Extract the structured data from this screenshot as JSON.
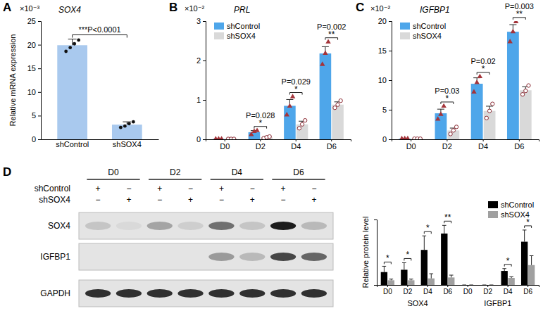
{
  "chart_data": [
    {
      "panel": "A",
      "type": "bar",
      "title": "SOX4",
      "y_unit_label": "×10⁻³",
      "y_label": "Relative mRNA expression",
      "categories": [
        "shControl",
        "shSOX4"
      ],
      "values": [
        19.9,
        3.1
      ],
      "errors": [
        1.3,
        0.6
      ],
      "points": [
        [
          18.6,
          19.4,
          20.2,
          21.0
        ],
        [
          2.5,
          2.8,
          3.3,
          3.7
        ]
      ],
      "marker": "dot",
      "color": "#a9c9ee",
      "ylim": [
        0,
        25
      ],
      "yticks": [
        0,
        5,
        10,
        15,
        20,
        25
      ],
      "annotations": [
        {
          "text": "***P<0.0001",
          "from": 0,
          "to": 1
        }
      ]
    },
    {
      "panel": "B",
      "type": "bar",
      "title": "PRL",
      "y_unit_label": "×10⁻²",
      "categories": [
        "D0",
        "D2",
        "D4",
        "D6"
      ],
      "series": [
        {
          "name": "shControl",
          "color": "#4ea6ea",
          "marker": "triangle",
          "values": [
            0.01,
            0.18,
            0.85,
            2.18
          ],
          "errors": [
            0.005,
            0.04,
            0.16,
            0.17
          ],
          "points": [
            [
              0.01,
              0.01,
              0.01
            ],
            [
              0.12,
              0.2,
              0.22
            ],
            [
              0.62,
              0.84,
              1.08
            ],
            [
              1.9,
              2.18,
              2.47
            ]
          ]
        },
        {
          "name": "shSOX4",
          "color": "#d9d9d9",
          "marker": "circle",
          "values": [
            0.01,
            0.05,
            0.38,
            0.88
          ],
          "errors": [
            0.005,
            0.02,
            0.08,
            0.07
          ],
          "points": [
            [
              0.01,
              0.01,
              0.01
            ],
            [
              0.03,
              0.05,
              0.07
            ],
            [
              0.28,
              0.38,
              0.48
            ],
            [
              0.8,
              0.88,
              0.98
            ]
          ]
        }
      ],
      "ylim": [
        0,
        3
      ],
      "yticks": [
        0,
        1,
        2,
        3
      ],
      "legend": "top-left",
      "significance": [
        {
          "category": 1,
          "p": "P=0.028",
          "stars": "*"
        },
        {
          "category": 2,
          "p": "P=0.029",
          "stars": "*"
        },
        {
          "category": 3,
          "p": "P=0.002",
          "stars": "**"
        }
      ]
    },
    {
      "panel": "C",
      "type": "bar",
      "title": "IGFBP1",
      "y_unit_label": "×10⁻²",
      "categories": [
        "D0",
        "D2",
        "D4",
        "D6"
      ],
      "series": [
        {
          "name": "shControl",
          "color": "#4ea6ea",
          "marker": "triangle",
          "values": [
            0.1,
            4.4,
            9.4,
            18.2
          ],
          "errors": [
            0.05,
            0.7,
            1.0,
            1.2
          ],
          "points": [
            [
              0.1,
              0.1,
              0.1
            ],
            [
              3.4,
              4.2,
              5.6
            ],
            [
              8.0,
              9.6,
              10.6
            ],
            [
              16.5,
              18.2,
              19.9
            ]
          ]
        },
        {
          "name": "shSOX4",
          "color": "#d9d9d9",
          "marker": "circle",
          "values": [
            0.1,
            1.5,
            4.8,
            8.3
          ],
          "errors": [
            0.05,
            0.4,
            0.8,
            0.6
          ],
          "points": [
            [
              0.1,
              0.1,
              0.1
            ],
            [
              0.9,
              1.5,
              2.1
            ],
            [
              3.6,
              4.8,
              6.0
            ],
            [
              7.6,
              8.2,
              9.1
            ]
          ]
        }
      ],
      "ylim": [
        0,
        20
      ],
      "yticks": [
        0,
        5,
        10,
        15,
        20
      ],
      "legend": "top-left",
      "significance": [
        {
          "category": 1,
          "p": "P=0.03",
          "stars": "*"
        },
        {
          "category": 2,
          "p": "P=0.02",
          "stars": "*"
        },
        {
          "category": 3,
          "p": "P=0.003",
          "stars": "**"
        }
      ]
    },
    {
      "type": "bar",
      "y_label": "Relative protein level",
      "categories": [
        "D0",
        "D2",
        "D4",
        "D6",
        "D0",
        "D2",
        "D4",
        "D6"
      ],
      "group_labels": [
        "SOX4",
        "IGFBP1"
      ],
      "series": [
        {
          "name": "shControl",
          "color": "#000000",
          "values": [
            0.55,
            0.65,
            1.5,
            2.2,
            0,
            0,
            0.6,
            1.85
          ],
          "errors": [
            0.25,
            0.3,
            0.6,
            0.35,
            0,
            0,
            0.1,
            0.5
          ]
        },
        {
          "name": "shSOX4",
          "color": "#a0a0a0",
          "values": [
            0.2,
            0.2,
            0.28,
            0.32,
            0,
            0,
            0.3,
            0.85
          ],
          "errors": [
            0.05,
            0.05,
            0.2,
            0.1,
            0,
            0,
            0.05,
            0.4
          ]
        }
      ],
      "ylim": [
        0,
        2.8
      ],
      "tick_labels": "x",
      "legend": "top-right",
      "significance": [
        {
          "category": 0,
          "stars": "*"
        },
        {
          "category": 1,
          "stars": "*"
        },
        {
          "category": 2,
          "stars": "*"
        },
        {
          "category": 3,
          "stars": "**"
        },
        {
          "category": 6,
          "stars": "*"
        },
        {
          "category": 7,
          "stars": "*"
        }
      ]
    }
  ],
  "blot": {
    "panel": "D",
    "conditions": [
      "D0",
      "D2",
      "D4",
      "D6"
    ],
    "treatments": [
      {
        "label": "shControl",
        "signs": [
          "+",
          "−",
          "+",
          "−",
          "+",
          "−",
          "+",
          "−"
        ]
      },
      {
        "label": "shSOX4",
        "signs": [
          "−",
          "+",
          "−",
          "+",
          "−",
          "+",
          "−",
          "+"
        ]
      }
    ],
    "rows": [
      {
        "label": "SOX4",
        "intensity": [
          0.15,
          0.05,
          0.3,
          0.1,
          0.55,
          0.15,
          0.95,
          0.2
        ]
      },
      {
        "label": "IGFBP1",
        "intensity": [
          0,
          0,
          0,
          0,
          0.35,
          0.2,
          0.75,
          0.6
        ]
      },
      {
        "label": "GAPDH",
        "intensity": [
          0.85,
          0.85,
          0.85,
          0.85,
          0.85,
          0.85,
          0.85,
          0.85
        ]
      }
    ]
  }
}
